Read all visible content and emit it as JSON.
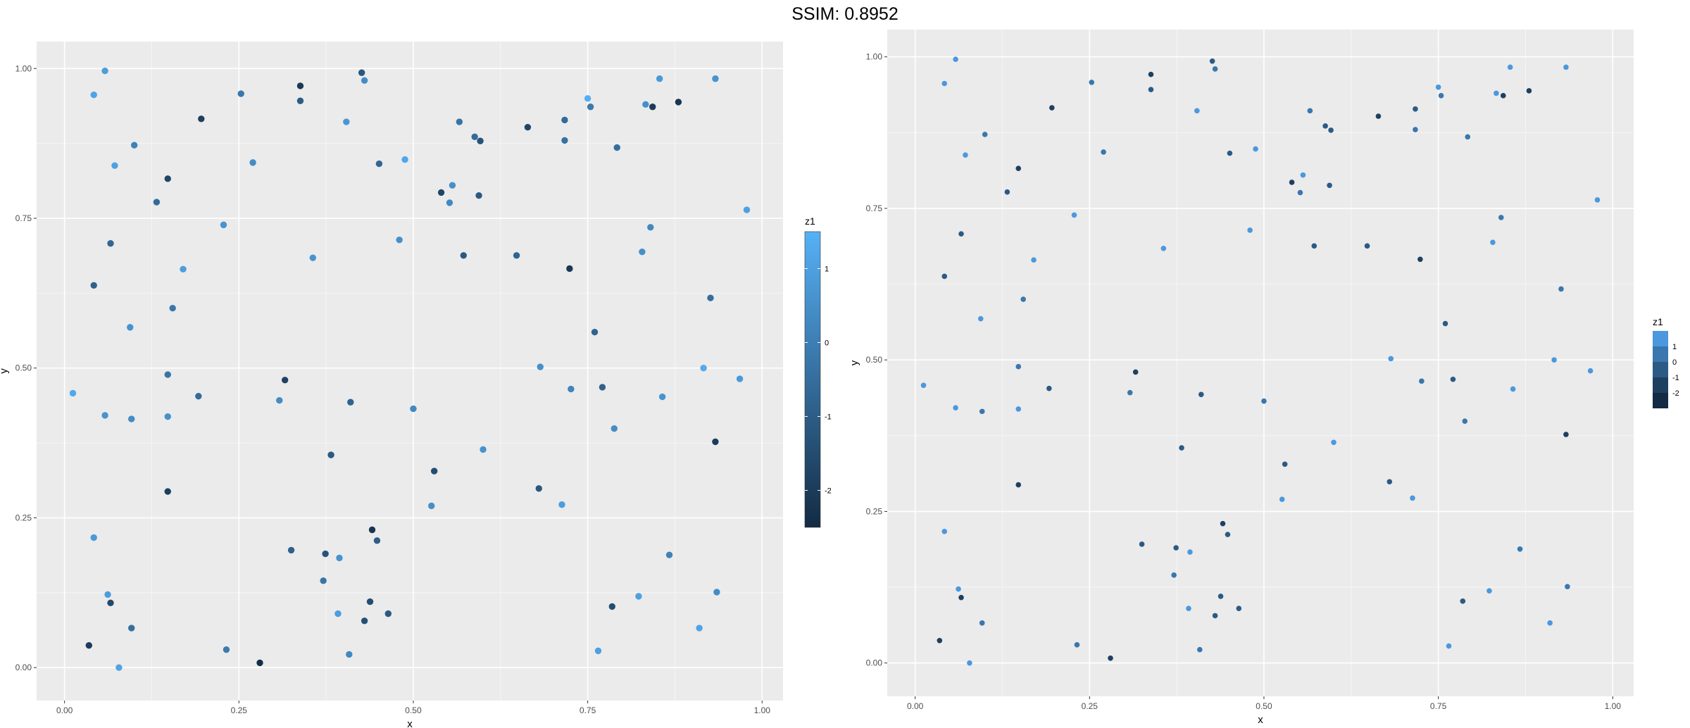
{
  "header": {
    "title": "SSIM: 0.8952"
  },
  "colors": {
    "panel_background": "#ebebeb",
    "grid_major": "#ffffff",
    "grid_minor": "#f5f5f5",
    "tick_text": "#4d4d4d",
    "low_color": "#132b43",
    "high_color": "#56b1f7"
  },
  "chart_data": [
    {
      "type": "scatter",
      "title": "",
      "xlabel": "x",
      "ylabel": "y",
      "xlim": [
        -0.04,
        1.03
      ],
      "ylim": [
        -0.055,
        1.045
      ],
      "x_ticks": [
        "0.00",
        "0.25",
        "0.50",
        "0.75",
        "1.00"
      ],
      "y_ticks": [
        "0.00",
        "0.25",
        "0.50",
        "0.75",
        "1.00"
      ],
      "grid": true,
      "color_scale": "continuous",
      "legend": {
        "title": "z1",
        "placement": "right",
        "labels": [
          "1",
          "0",
          "-1",
          "-2"
        ],
        "values": [
          1,
          0,
          -1,
          -2
        ],
        "range": [
          -2.5,
          1.5
        ]
      },
      "points": [
        {
          "x": 0.012,
          "y": 0.458,
          "z": 1.2
        },
        {
          "x": 0.035,
          "y": 0.037,
          "z": -2.0
        },
        {
          "x": 0.042,
          "y": 0.956,
          "z": 1.1
        },
        {
          "x": 0.042,
          "y": 0.638,
          "z": -0.9
        },
        {
          "x": 0.042,
          "y": 0.217,
          "z": 0.8
        },
        {
          "x": 0.058,
          "y": 0.996,
          "z": 0.9
        },
        {
          "x": 0.058,
          "y": 0.421,
          "z": 0.6
        },
        {
          "x": 0.062,
          "y": 0.122,
          "z": 0.9
        },
        {
          "x": 0.066,
          "y": 0.708,
          "z": -0.7
        },
        {
          "x": 0.066,
          "y": 0.108,
          "z": -1.6
        },
        {
          "x": 0.072,
          "y": 0.838,
          "z": 1.0
        },
        {
          "x": 0.078,
          "y": 0.0,
          "z": 1.1
        },
        {
          "x": 0.094,
          "y": 0.568,
          "z": 0.6
        },
        {
          "x": 0.096,
          "y": 0.415,
          "z": 0.4
        },
        {
          "x": 0.096,
          "y": 0.066,
          "z": -0.5
        },
        {
          "x": 0.1,
          "y": 0.872,
          "z": 0.1
        },
        {
          "x": 0.132,
          "y": 0.777,
          "z": -0.6
        },
        {
          "x": 0.148,
          "y": 0.816,
          "z": -1.7
        },
        {
          "x": 0.148,
          "y": 0.489,
          "z": -0.3
        },
        {
          "x": 0.148,
          "y": 0.419,
          "z": 0.5
        },
        {
          "x": 0.148,
          "y": 0.294,
          "z": -1.9
        },
        {
          "x": 0.155,
          "y": 0.6,
          "z": -0.2
        },
        {
          "x": 0.17,
          "y": 0.665,
          "z": 0.9
        },
        {
          "x": 0.192,
          "y": 0.453,
          "z": -0.6
        },
        {
          "x": 0.196,
          "y": 0.916,
          "z": -1.9
        },
        {
          "x": 0.228,
          "y": 0.739,
          "z": 0.6
        },
        {
          "x": 0.232,
          "y": 0.03,
          "z": -0.1
        },
        {
          "x": 0.253,
          "y": 0.958,
          "z": -0.2
        },
        {
          "x": 0.27,
          "y": 0.843,
          "z": 0.4
        },
        {
          "x": 0.28,
          "y": 0.008,
          "z": -2.4
        },
        {
          "x": 0.308,
          "y": 0.446,
          "z": 0.4
        },
        {
          "x": 0.316,
          "y": 0.48,
          "z": -1.8
        },
        {
          "x": 0.325,
          "y": 0.196,
          "z": -0.9
        },
        {
          "x": 0.338,
          "y": 0.971,
          "z": -2.1
        },
        {
          "x": 0.338,
          "y": 0.946,
          "z": -1.0
        },
        {
          "x": 0.356,
          "y": 0.684,
          "z": 0.6
        },
        {
          "x": 0.371,
          "y": 0.145,
          "z": -0.3
        },
        {
          "x": 0.374,
          "y": 0.19,
          "z": -1.3
        },
        {
          "x": 0.382,
          "y": 0.355,
          "z": -1.1
        },
        {
          "x": 0.392,
          "y": 0.09,
          "z": 0.9
        },
        {
          "x": 0.394,
          "y": 0.183,
          "z": 0.6
        },
        {
          "x": 0.404,
          "y": 0.911,
          "z": 0.7
        },
        {
          "x": 0.408,
          "y": 0.022,
          "z": 0.3
        },
        {
          "x": 0.41,
          "y": 0.443,
          "z": -0.8
        },
        {
          "x": 0.426,
          "y": 0.993,
          "z": -1.2
        },
        {
          "x": 0.43,
          "y": 0.98,
          "z": 0.4
        },
        {
          "x": 0.43,
          "y": 0.078,
          "z": -1.4
        },
        {
          "x": 0.438,
          "y": 0.11,
          "z": -1.5
        },
        {
          "x": 0.441,
          "y": 0.23,
          "z": -2.2
        },
        {
          "x": 0.448,
          "y": 0.212,
          "z": -1.0
        },
        {
          "x": 0.451,
          "y": 0.841,
          "z": -0.7
        },
        {
          "x": 0.464,
          "y": 0.09,
          "z": -1.1
        },
        {
          "x": 0.48,
          "y": 0.714,
          "z": 0.5
        },
        {
          "x": 0.488,
          "y": 0.848,
          "z": 1.2
        },
        {
          "x": 0.5,
          "y": 0.432,
          "z": 0.3
        },
        {
          "x": 0.526,
          "y": 0.27,
          "z": 0.5
        },
        {
          "x": 0.53,
          "y": 0.328,
          "z": -1.5
        },
        {
          "x": 0.54,
          "y": 0.793,
          "z": -1.7
        },
        {
          "x": 0.552,
          "y": 0.776,
          "z": 0.3
        },
        {
          "x": 0.556,
          "y": 0.805,
          "z": 0.5
        },
        {
          "x": 0.566,
          "y": 0.911,
          "z": -0.3
        },
        {
          "x": 0.572,
          "y": 0.688,
          "z": -1.1
        },
        {
          "x": 0.588,
          "y": 0.886,
          "z": -0.6
        },
        {
          "x": 0.594,
          "y": 0.788,
          "z": -1.1
        },
        {
          "x": 0.596,
          "y": 0.879,
          "z": -1.3
        },
        {
          "x": 0.6,
          "y": 0.364,
          "z": 0.6
        },
        {
          "x": 0.648,
          "y": 0.688,
          "z": -0.8
        },
        {
          "x": 0.664,
          "y": 0.902,
          "z": -1.7
        },
        {
          "x": 0.68,
          "y": 0.299,
          "z": -1.2
        },
        {
          "x": 0.682,
          "y": 0.502,
          "z": 0.5
        },
        {
          "x": 0.713,
          "y": 0.272,
          "z": 0.9
        },
        {
          "x": 0.717,
          "y": 0.914,
          "z": -0.6
        },
        {
          "x": 0.717,
          "y": 0.88,
          "z": -0.4
        },
        {
          "x": 0.724,
          "y": 0.666,
          "z": -2.1
        },
        {
          "x": 0.726,
          "y": 0.465,
          "z": 0.2
        },
        {
          "x": 0.75,
          "y": 0.95,
          "z": 1.4
        },
        {
          "x": 0.754,
          "y": 0.936,
          "z": -0.1
        },
        {
          "x": 0.76,
          "y": 0.56,
          "z": -0.8
        },
        {
          "x": 0.765,
          "y": 0.028,
          "z": 1.0
        },
        {
          "x": 0.771,
          "y": 0.468,
          "z": -0.9
        },
        {
          "x": 0.785,
          "y": 0.102,
          "z": -1.5
        },
        {
          "x": 0.788,
          "y": 0.399,
          "z": 0.4
        },
        {
          "x": 0.792,
          "y": 0.868,
          "z": -0.5
        },
        {
          "x": 0.823,
          "y": 0.119,
          "z": 1.0
        },
        {
          "x": 0.828,
          "y": 0.694,
          "z": 0.5
        },
        {
          "x": 0.833,
          "y": 0.94,
          "z": 0.5
        },
        {
          "x": 0.84,
          "y": 0.735,
          "z": 0.3
        },
        {
          "x": 0.843,
          "y": 0.936,
          "z": -2.0
        },
        {
          "x": 0.853,
          "y": 0.983,
          "z": 0.8
        },
        {
          "x": 0.857,
          "y": 0.452,
          "z": 0.6
        },
        {
          "x": 0.867,
          "y": 0.188,
          "z": 0.1
        },
        {
          "x": 0.88,
          "y": 0.944,
          "z": -2.2
        },
        {
          "x": 0.91,
          "y": 0.066,
          "z": 1.1
        },
        {
          "x": 0.916,
          "y": 0.5,
          "z": 1.3
        },
        {
          "x": 0.926,
          "y": 0.617,
          "z": -0.5
        },
        {
          "x": 0.933,
          "y": 0.377,
          "z": -2.0
        },
        {
          "x": 0.933,
          "y": 0.983,
          "z": 0.6
        },
        {
          "x": 0.935,
          "y": 0.126,
          "z": 0.4
        },
        {
          "x": 0.968,
          "y": 0.482,
          "z": 0.8
        },
        {
          "x": 0.978,
          "y": 0.764,
          "z": 1.0
        }
      ]
    },
    {
      "type": "scatter",
      "title": "",
      "xlabel": "x",
      "ylabel": "y",
      "xlim": [
        -0.04,
        1.03
      ],
      "ylim": [
        -0.055,
        1.045
      ],
      "x_ticks": [
        "0.00",
        "0.25",
        "0.50",
        "0.75",
        "1.00"
      ],
      "y_ticks": [
        "0.00",
        "0.25",
        "0.50",
        "0.75",
        "1.00"
      ],
      "grid": true,
      "color_scale": "binned",
      "legend": {
        "title": "z1",
        "placement": "right",
        "labels": [
          "1",
          "0",
          "-1",
          "-2"
        ],
        "bin_colors": [
          "#4b98de",
          "#3a77ae",
          "#2b5a85",
          "#1e4060",
          "#132b43"
        ]
      }
    }
  ]
}
